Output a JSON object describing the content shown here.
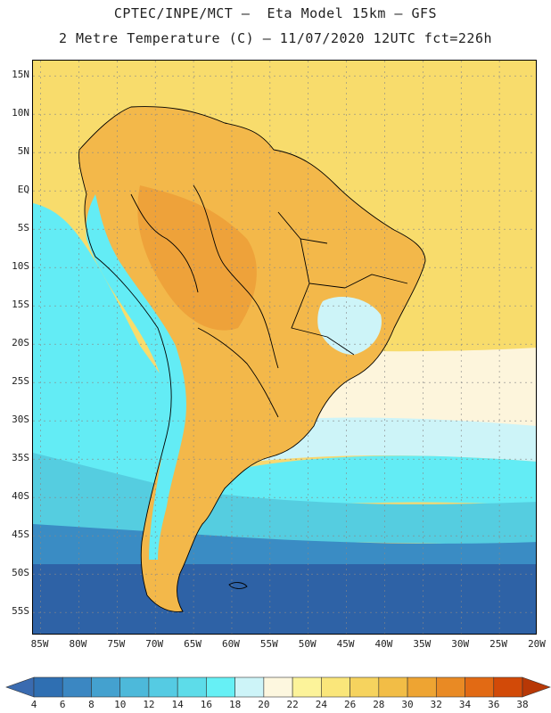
{
  "header": {
    "title_line1": "CPTEC/INPE/MCT –  Eta Model 15km – GFS",
    "title_line2": "2 Metre Temperature (C) – 11/07/2020 12UTC fct=226h"
  },
  "map": {
    "region": "South America",
    "lon_range": [
      -86,
      -20
    ],
    "lat_range": [
      -58,
      17
    ],
    "lat_ticks": [
      {
        "value": 15,
        "label": "15N"
      },
      {
        "value": 10,
        "label": "10N"
      },
      {
        "value": 5,
        "label": "5N"
      },
      {
        "value": 0,
        "label": "EQ"
      },
      {
        "value": -5,
        "label": "5S"
      },
      {
        "value": -10,
        "label": "10S"
      },
      {
        "value": -15,
        "label": "15S"
      },
      {
        "value": -20,
        "label": "20S"
      },
      {
        "value": -25,
        "label": "25S"
      },
      {
        "value": -30,
        "label": "30S"
      },
      {
        "value": -35,
        "label": "35S"
      },
      {
        "value": -40,
        "label": "40S"
      },
      {
        "value": -45,
        "label": "45S"
      },
      {
        "value": -50,
        "label": "50S"
      },
      {
        "value": -55,
        "label": "55S"
      }
    ],
    "lon_ticks": [
      {
        "value": -85,
        "label": "85W"
      },
      {
        "value": -80,
        "label": "80W"
      },
      {
        "value": -75,
        "label": "75W"
      },
      {
        "value": -70,
        "label": "70W"
      },
      {
        "value": -65,
        "label": "65W"
      },
      {
        "value": -60,
        "label": "60W"
      },
      {
        "value": -55,
        "label": "55W"
      },
      {
        "value": -50,
        "label": "50W"
      },
      {
        "value": -45,
        "label": "45W"
      },
      {
        "value": -40,
        "label": "40W"
      },
      {
        "value": -35,
        "label": "35W"
      },
      {
        "value": -30,
        "label": "30W"
      },
      {
        "value": -25,
        "label": "25W"
      },
      {
        "value": -20,
        "label": "20W"
      }
    ],
    "colors": {
      "ocean_south_deep": "#2e62a6",
      "ocean_mid": "#3a8cc4",
      "ocean_cool": "#55cde0",
      "ocean_cyan": "#63ecf5",
      "ocean_pale": "#cdf4f8",
      "ocean_cream": "#fdf5dc",
      "ocean_tropical": "#f8dc6c",
      "land_warm": "#f3b84a",
      "land_hot": "#eea23a",
      "land_highland": "#63ecf5",
      "border": "#000000"
    }
  },
  "colorbar": {
    "labels": [
      "4",
      "6",
      "8",
      "10",
      "12",
      "14",
      "16",
      "18",
      "20",
      "22",
      "24",
      "26",
      "28",
      "30",
      "32",
      "34",
      "36",
      "38"
    ],
    "colors": [
      "#3a6bb0",
      "#2f6fb2",
      "#3b87c2",
      "#44a1cf",
      "#4db9da",
      "#55cbe3",
      "#5ddce9",
      "#66f0f5",
      "#cdf4f8",
      "#fdf7df",
      "#fcf39a",
      "#fae67a",
      "#f6d35e",
      "#f2bd46",
      "#eea432",
      "#e98a24",
      "#e26a14",
      "#d24a08",
      "#b83806"
    ]
  }
}
